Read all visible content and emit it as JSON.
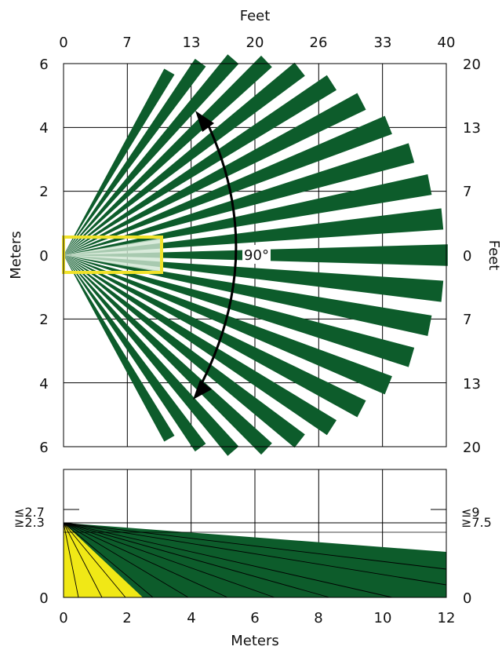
{
  "top_chart": {
    "top_axis_title": "Feet",
    "top_ticks": [
      "0",
      "7",
      "13",
      "20",
      "26",
      "33",
      "40"
    ],
    "left_axis_title": "Meters",
    "left_ticks": [
      "6",
      "4",
      "2",
      "0",
      "2",
      "4",
      "6"
    ],
    "right_axis_title": "Feet",
    "right_ticks": [
      "20",
      "13",
      "7",
      "0",
      "7",
      "13",
      "20"
    ],
    "angle_label": "90°",
    "colors": {
      "beam": "#0d5c2b",
      "detection_box": "#f0e22a",
      "arrow": "#000000"
    }
  },
  "bottom_chart": {
    "bottom_axis_title": "Meters",
    "bottom_ticks": [
      "0",
      "2",
      "4",
      "6",
      "8",
      "10",
      "12"
    ],
    "left_labels": [
      "≤2.7",
      "≥2.3",
      "0"
    ],
    "right_labels": [
      "≤9",
      "≥7.5",
      "0"
    ],
    "colors": {
      "beam": "#0d5c2b",
      "near_zone": "#f0e816"
    }
  }
}
